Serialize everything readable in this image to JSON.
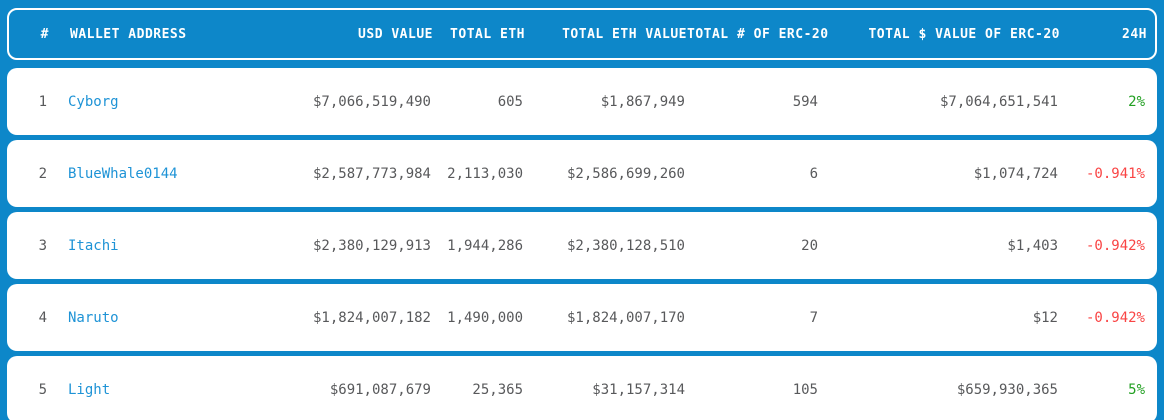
{
  "colors": {
    "background_blue": "#0d87c9",
    "header_text": "#ffffff",
    "row_text_gray": "#58595b",
    "wallet_link_blue": "#1e93d6",
    "positive_green": "#22a022",
    "negative_red": "#f94444",
    "card_white": "#ffffff"
  },
  "table": {
    "columns": [
      {
        "key": "rank",
        "label": "#"
      },
      {
        "key": "wallet",
        "label": "WALLET ADDRESS"
      },
      {
        "key": "usd_value",
        "label": "USD VALUE"
      },
      {
        "key": "total_eth",
        "label": "TOTAL ETH"
      },
      {
        "key": "total_eth_value",
        "label": "TOTAL ETH VALUE"
      },
      {
        "key": "total_erc20_count",
        "label": "TOTAL # OF ERC-20"
      },
      {
        "key": "total_erc20_value",
        "label": "TOTAL $ VALUE OF ERC-20"
      },
      {
        "key": "change_24h",
        "label": "24H"
      }
    ],
    "rows": [
      {
        "rank": "1",
        "wallet": "Cyborg",
        "usd_value": "$7,066,519,490",
        "total_eth": "605",
        "total_eth_value": "$1,867,949",
        "total_erc20_count": "594",
        "total_erc20_value": "$7,064,651,541",
        "change_24h": "2%",
        "change_direction": "up"
      },
      {
        "rank": "2",
        "wallet": "BlueWhale0144",
        "usd_value": "$2,587,773,984",
        "total_eth": "2,113,030",
        "total_eth_value": "$2,586,699,260",
        "total_erc20_count": "6",
        "total_erc20_value": "$1,074,724",
        "change_24h": "-0.941%",
        "change_direction": "down"
      },
      {
        "rank": "3",
        "wallet": "Itachi",
        "usd_value": "$2,380,129,913",
        "total_eth": "1,944,286",
        "total_eth_value": "$2,380,128,510",
        "total_erc20_count": "20",
        "total_erc20_value": "$1,403",
        "change_24h": "-0.942%",
        "change_direction": "down"
      },
      {
        "rank": "4",
        "wallet": "Naruto",
        "usd_value": "$1,824,007,182",
        "total_eth": "1,490,000",
        "total_eth_value": "$1,824,007,170",
        "total_erc20_count": "7",
        "total_erc20_value": "$12",
        "change_24h": "-0.942%",
        "change_direction": "down"
      },
      {
        "rank": "5",
        "wallet": "Light",
        "usd_value": "$691,087,679",
        "total_eth": "25,365",
        "total_eth_value": "$31,157,314",
        "total_erc20_count": "105",
        "total_erc20_value": "$659,930,365",
        "change_24h": "5%",
        "change_direction": "up"
      }
    ]
  }
}
